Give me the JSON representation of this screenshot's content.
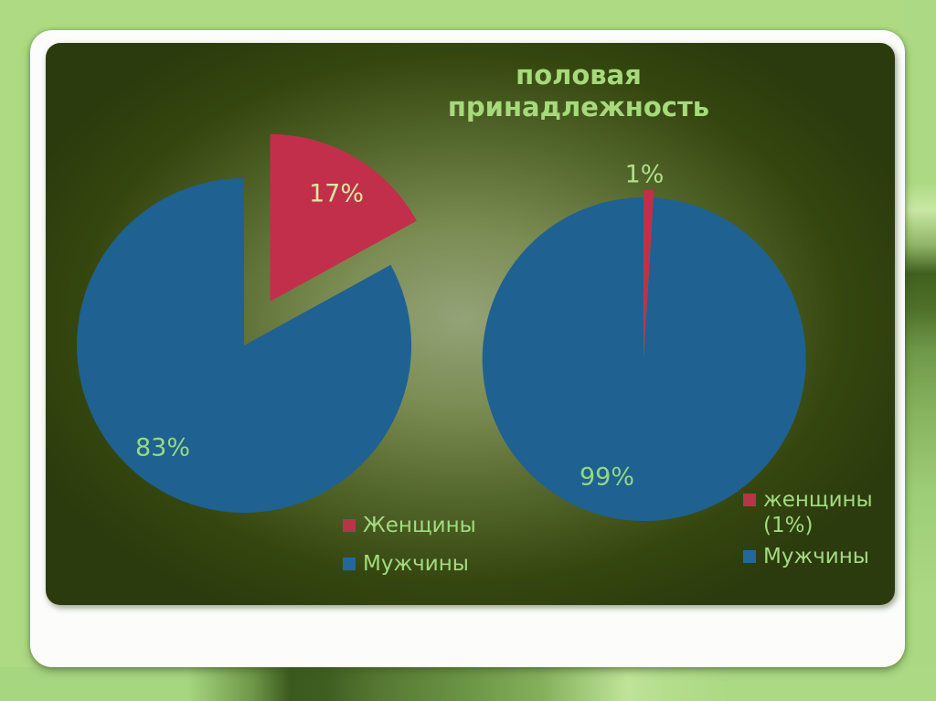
{
  "slide": {
    "title_lines": [
      "половая",
      "принадлежность"
    ]
  },
  "colors": {
    "male_blue": "#1F6191",
    "female_red": "#C22F4B",
    "legend_red_swatch": "#B83448",
    "legend_blue_swatch": "#24689B",
    "title_green": "#A6DA7A",
    "legend_text_green": "#A3DB81",
    "slide_bg_dark": "#2B3B0D",
    "slide_glow": "#94A377",
    "outer_bg": "#AEDA84",
    "frame_white": "#FCFDFB"
  },
  "chart_data": [
    {
      "type": "pie",
      "title": "половая принадлежность",
      "categories": [
        "Женщины",
        "Мужчины"
      ],
      "values": [
        17,
        83
      ],
      "unit": "%",
      "slices": [
        {
          "key": "female",
          "label": "Женщины",
          "value": 17,
          "pct_label": "17%",
          "color": "#C22F4B",
          "pct_color": "#DCE7A0",
          "exploded": true
        },
        {
          "key": "male",
          "label": "Мужчины",
          "value": 83,
          "pct_label": "83%",
          "color": "#1F6191",
          "pct_color": "#95DA83",
          "exploded": false
        }
      ],
      "legend": [
        "Женщины",
        "Мужчины"
      ],
      "legend_position": "bottom-center"
    },
    {
      "type": "pie",
      "title": "половая принадлежность",
      "categories": [
        "женщины (1%)",
        "Мужчины"
      ],
      "values": [
        1,
        99
      ],
      "unit": "%",
      "slices": [
        {
          "key": "female",
          "label": "женщины (1%)",
          "value": 1,
          "pct_label": "1%",
          "color": "#C22F4B",
          "pct_color": "#B2DF8C",
          "exploded": true
        },
        {
          "key": "male",
          "label": "Мужчины",
          "value": 99,
          "pct_label": "99%",
          "color": "#1F6191",
          "pct_color": "#93D982",
          "exploded": false
        }
      ],
      "legend": [
        "женщины (1%)",
        "Мужчины"
      ],
      "legend_position": "right-bottom"
    }
  ]
}
